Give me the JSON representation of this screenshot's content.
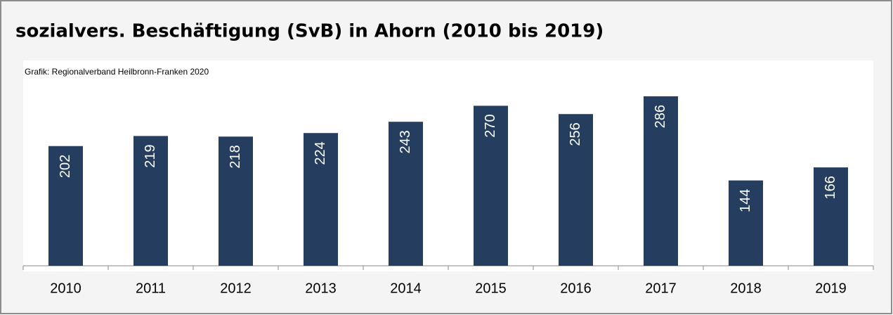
{
  "chart_data": {
    "type": "bar",
    "title": "sozialvers. Beschäftigung (SvB) in Ahorn (2010 bis 2019)",
    "subtitle": "Grafik: Regionalverband Heilbronn-Franken 2020",
    "categories": [
      "2010",
      "2011",
      "2012",
      "2013",
      "2014",
      "2015",
      "2016",
      "2017",
      "2018",
      "2019"
    ],
    "values": [
      202,
      219,
      218,
      224,
      243,
      270,
      256,
      286,
      144,
      166
    ],
    "color": "#253d5e",
    "ylim": [
      0,
      350
    ]
  }
}
